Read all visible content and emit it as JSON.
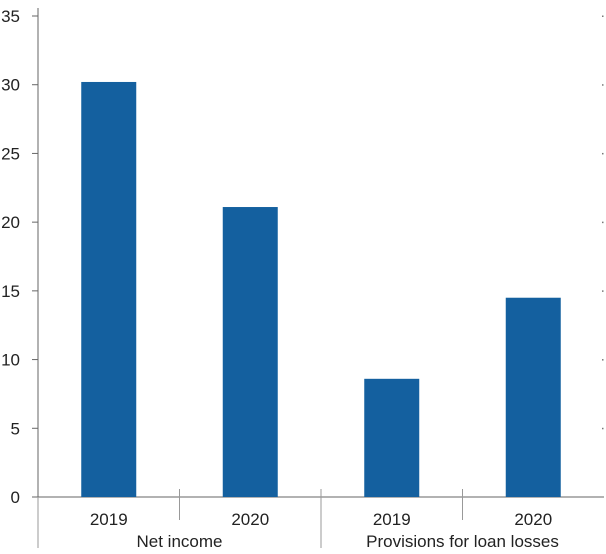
{
  "chart_data": {
    "type": "bar",
    "title": "",
    "xlabel": "",
    "ylabel": "",
    "ylim": [
      0,
      35
    ],
    "yticks": [
      0,
      5,
      10,
      15,
      20,
      25,
      30,
      35
    ],
    "groups": [
      {
        "label": "Net income",
        "categories": [
          "2019",
          "2020"
        ],
        "values": [
          30.2,
          21.1
        ]
      },
      {
        "label": "Provisions for loan losses",
        "categories": [
          "2019",
          "2020"
        ],
        "values": [
          8.6,
          14.5
        ]
      }
    ],
    "bar_color": "#14609f",
    "grid": false
  }
}
